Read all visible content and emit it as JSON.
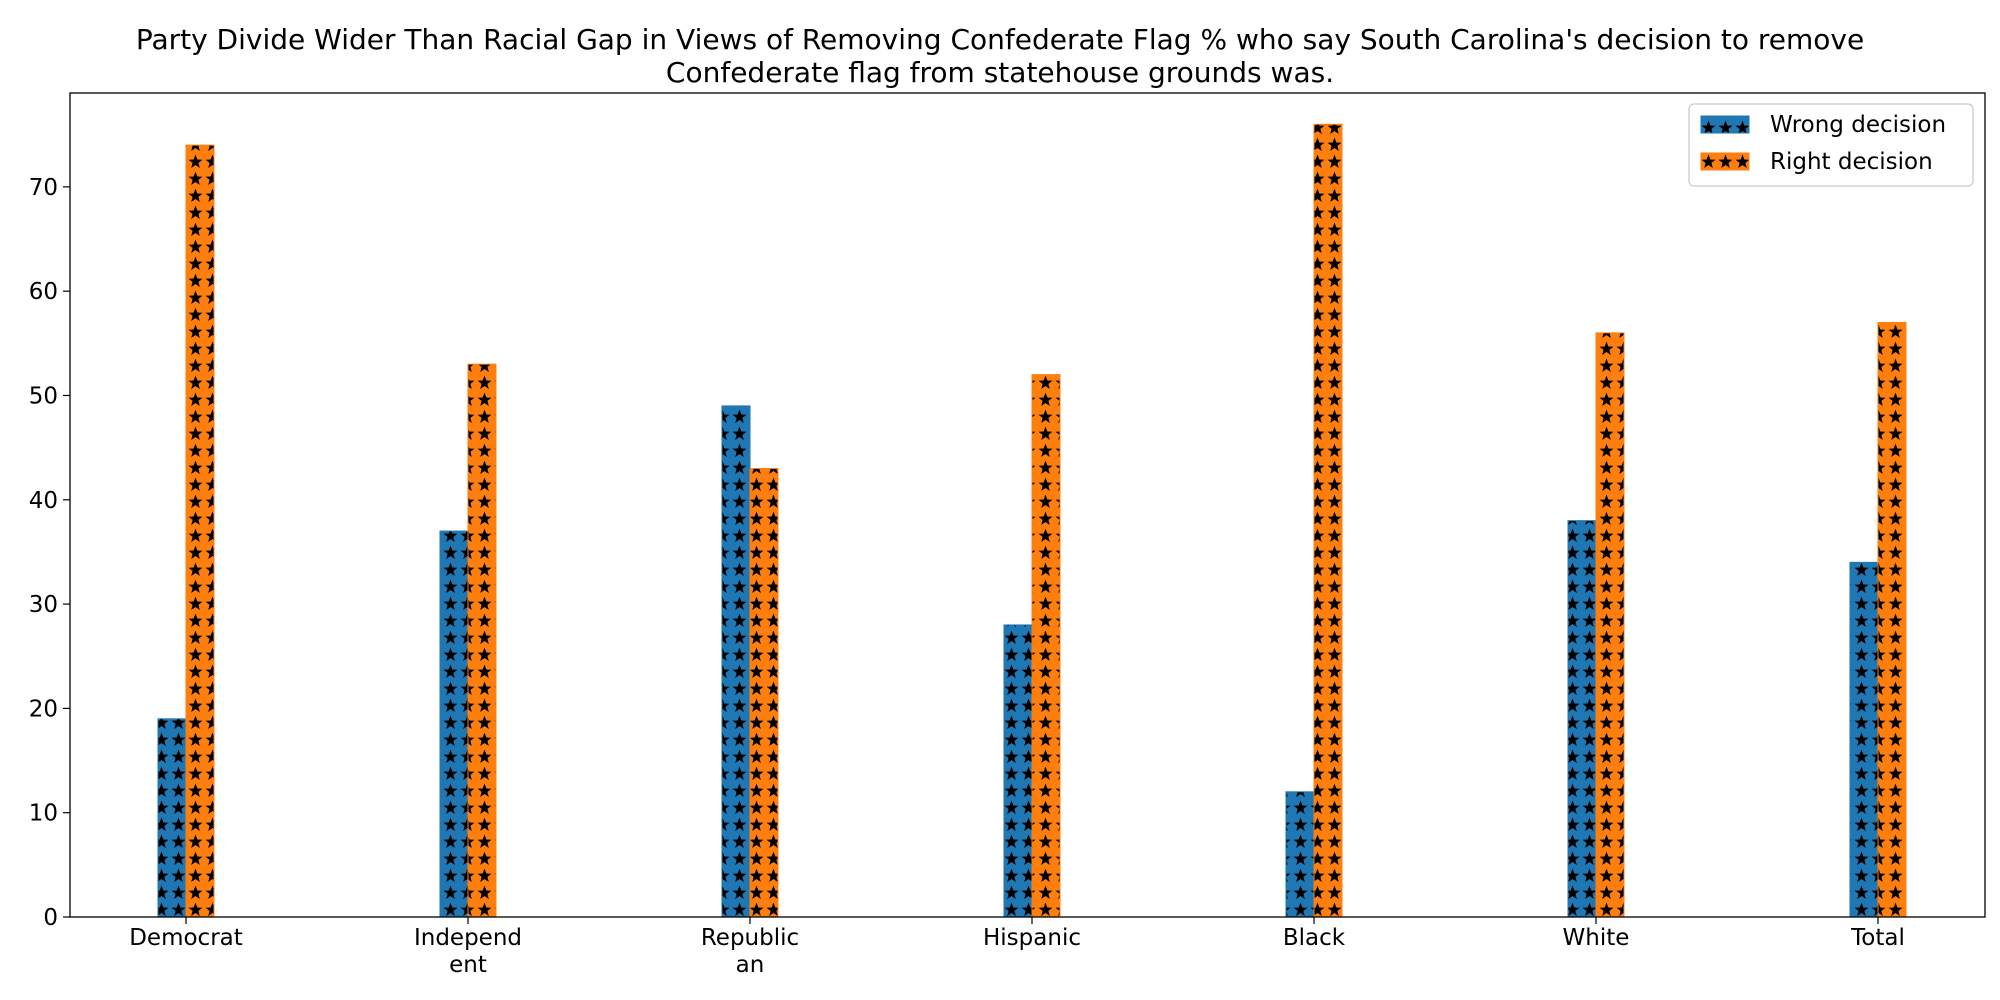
{
  "chart_data": {
    "type": "bar",
    "title_lines": [
      "Party Divide Wider Than Racial Gap in Views of Removing Confederate Flag % who say South Carolina's decision to remove",
      "Confederate flag from statehouse grounds was."
    ],
    "categories": [
      [
        "Democrat"
      ],
      [
        "Independ",
        "ent"
      ],
      [
        "Republic",
        "an"
      ],
      [
        "Hispanic"
      ],
      [
        "Black"
      ],
      [
        "White"
      ],
      [
        "Total"
      ]
    ],
    "series": [
      {
        "name": "Wrong decision",
        "values": [
          19,
          37,
          49,
          28,
          12,
          38,
          34
        ],
        "color": "#1f77b4"
      },
      {
        "name": "Right decision",
        "values": [
          74,
          53,
          43,
          52,
          76,
          56,
          57
        ],
        "color": "#ff7f0e"
      }
    ],
    "hatch": "star",
    "ylim": [
      0,
      79
    ],
    "yticks": [
      0,
      10,
      20,
      30,
      40,
      50,
      60,
      70
    ],
    "legend_position": "top-right",
    "grid": false
  }
}
